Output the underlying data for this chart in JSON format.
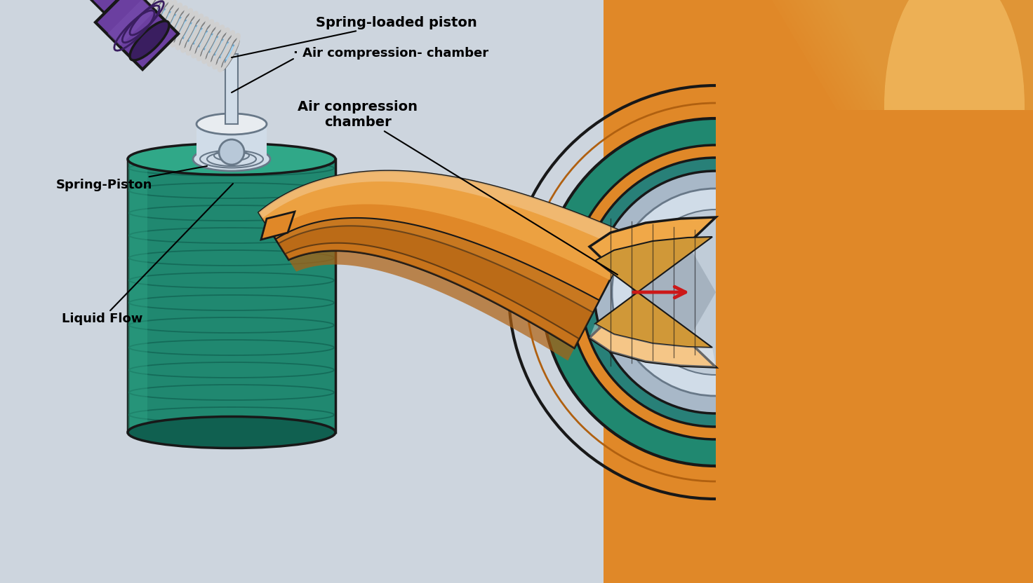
{
  "background_color": "#cdd5de",
  "labels": {
    "spring_loaded_piston": "Spring-loaded piston",
    "air_compression_1": "· Air compression- chamber",
    "air_compression_2": "Air conpression\nchamber",
    "spring_piston": "Spring-Piston",
    "liquid_flow": "Liquid Flow"
  },
  "colors": {
    "background": "#cdd5de",
    "purple_pump": "#6b3fa0",
    "purple_dark": "#3a1e60",
    "purple_mid": "#7a50b0",
    "spring_silver": "#d0d0d0",
    "spring_dark": "#808080",
    "spring_mid": "#b0b0b0",
    "piston_blue": "#a0d0f0",
    "piston_blue_dark": "#70a8cc",
    "teal_body": "#208870",
    "teal_dark": "#106050",
    "teal_light": "#30a888",
    "teal_mid": "#288078",
    "orange_tube": "#e08828",
    "orange_light": "#f0a848",
    "orange_pale": "#f8c870",
    "orange_dark": "#b06010",
    "orange_stripe": "#c87820",
    "silver_metal": "#a8b8c8",
    "silver_light": "#d0dce8",
    "silver_dark": "#687888",
    "silver_mid": "#b8c8d8",
    "red_arrow": "#cc1818",
    "line_dark": "#181818",
    "white": "#ffffff",
    "off_white": "#e8ecf0"
  },
  "font_size": 13
}
